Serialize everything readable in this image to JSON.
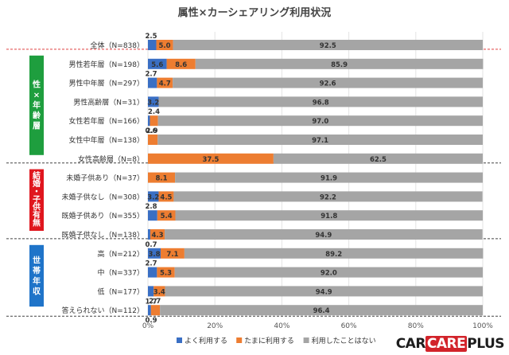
{
  "chart_data": {
    "type": "bar",
    "orientation": "horizontal",
    "stacked": true,
    "percent": true,
    "title": "属性×カーシェアリング利用状況",
    "xlim": [
      0,
      100
    ],
    "xticks": [
      "0%",
      "20%",
      "40%",
      "60%",
      "80%",
      "100%"
    ],
    "legend_position": "bottom",
    "series": [
      {
        "name": "よく利用する",
        "color": "#3a6fc4"
      },
      {
        "name": "たまに利用する",
        "color": "#ed7d31"
      },
      {
        "name": "利用したことはない",
        "color": "#a5a5a5"
      }
    ],
    "rows": [
      {
        "label": "全体（N=838）",
        "values": [
          2.5,
          5.0,
          92.5
        ],
        "labels": [
          "2.5",
          "5.0",
          "92.5"
        ]
      },
      {
        "label": "男性若年層（N=198）",
        "values": [
          5.6,
          8.6,
          85.9
        ],
        "labels": [
          "5.6",
          "8.6",
          "85.9"
        ]
      },
      {
        "label": "男性中年層（N=297）",
        "values": [
          2.7,
          4.7,
          92.6
        ],
        "labels": [
          "2.7",
          "4.7",
          "92.6"
        ]
      },
      {
        "label": "男性高齢層（N=31）",
        "values": [
          3.2,
          0,
          96.8
        ],
        "labels": [
          "3.2",
          "",
          "96.8"
        ]
      },
      {
        "label": "女性若年層（N=166）",
        "values": [
          0.6,
          2.4,
          97.0
        ],
        "labels": [
          "0.6",
          "2.4",
          "97.0"
        ]
      },
      {
        "label": "女性中年層（N=138）",
        "values": [
          0,
          2.9,
          97.1
        ],
        "labels": [
          "",
          "2.9",
          "97.1"
        ]
      },
      {
        "label": "女性高齢層（N=8）",
        "values": [
          0,
          37.5,
          62.5
        ],
        "labels": [
          "",
          "37.5",
          "62.5"
        ]
      },
      {
        "label": "未婚子供あり（N=37）",
        "values": [
          0,
          8.1,
          91.9
        ],
        "labels": [
          "",
          "8.1",
          "91.9"
        ]
      },
      {
        "label": "未婚子供なし（N=308）",
        "values": [
          3.2,
          4.5,
          92.2
        ],
        "labels": [
          "3.2",
          "4.5",
          "92.2"
        ]
      },
      {
        "label": "既婚子供あり（N=355）",
        "values": [
          2.8,
          5.4,
          91.8
        ],
        "labels": [
          "2.8",
          "5.4",
          "91.8"
        ]
      },
      {
        "label": "既婚子供なし（N=138）",
        "values": [
          0.7,
          4.3,
          94.9
        ],
        "labels": [
          "0.7",
          "4.3",
          "94.9"
        ]
      },
      {
        "label": "高（N=212）",
        "values": [
          3.8,
          7.1,
          89.2
        ],
        "labels": [
          "3.8",
          "7.1",
          "89.2"
        ]
      },
      {
        "label": "中（N=337）",
        "values": [
          2.7,
          5.3,
          92.0
        ],
        "labels": [
          "2.7",
          "5.3",
          "92.0"
        ]
      },
      {
        "label": "低（N=177）",
        "values": [
          1.7,
          3.4,
          94.9
        ],
        "labels": [
          "1.7",
          "3.4",
          "94.9"
        ]
      },
      {
        "label": "答えられない（N=112）",
        "values": [
          0.9,
          2.7,
          96.4
        ],
        "labels": [
          "0.9",
          "2.7",
          "96.4"
        ]
      }
    ],
    "groups": [
      {
        "label": "性×年齢層",
        "color": "#1e9e3e",
        "rows": [
          1,
          6
        ]
      },
      {
        "label": "結婚・子供有無",
        "color": "#e0161e",
        "rows": [
          7,
          10
        ]
      },
      {
        "label": "世帯年収",
        "color": "#1f74c9",
        "rows": [
          11,
          14
        ]
      }
    ]
  },
  "logo": {
    "text_a": "CAR",
    "text_b": "CARE",
    "text_c": "PLUS"
  }
}
